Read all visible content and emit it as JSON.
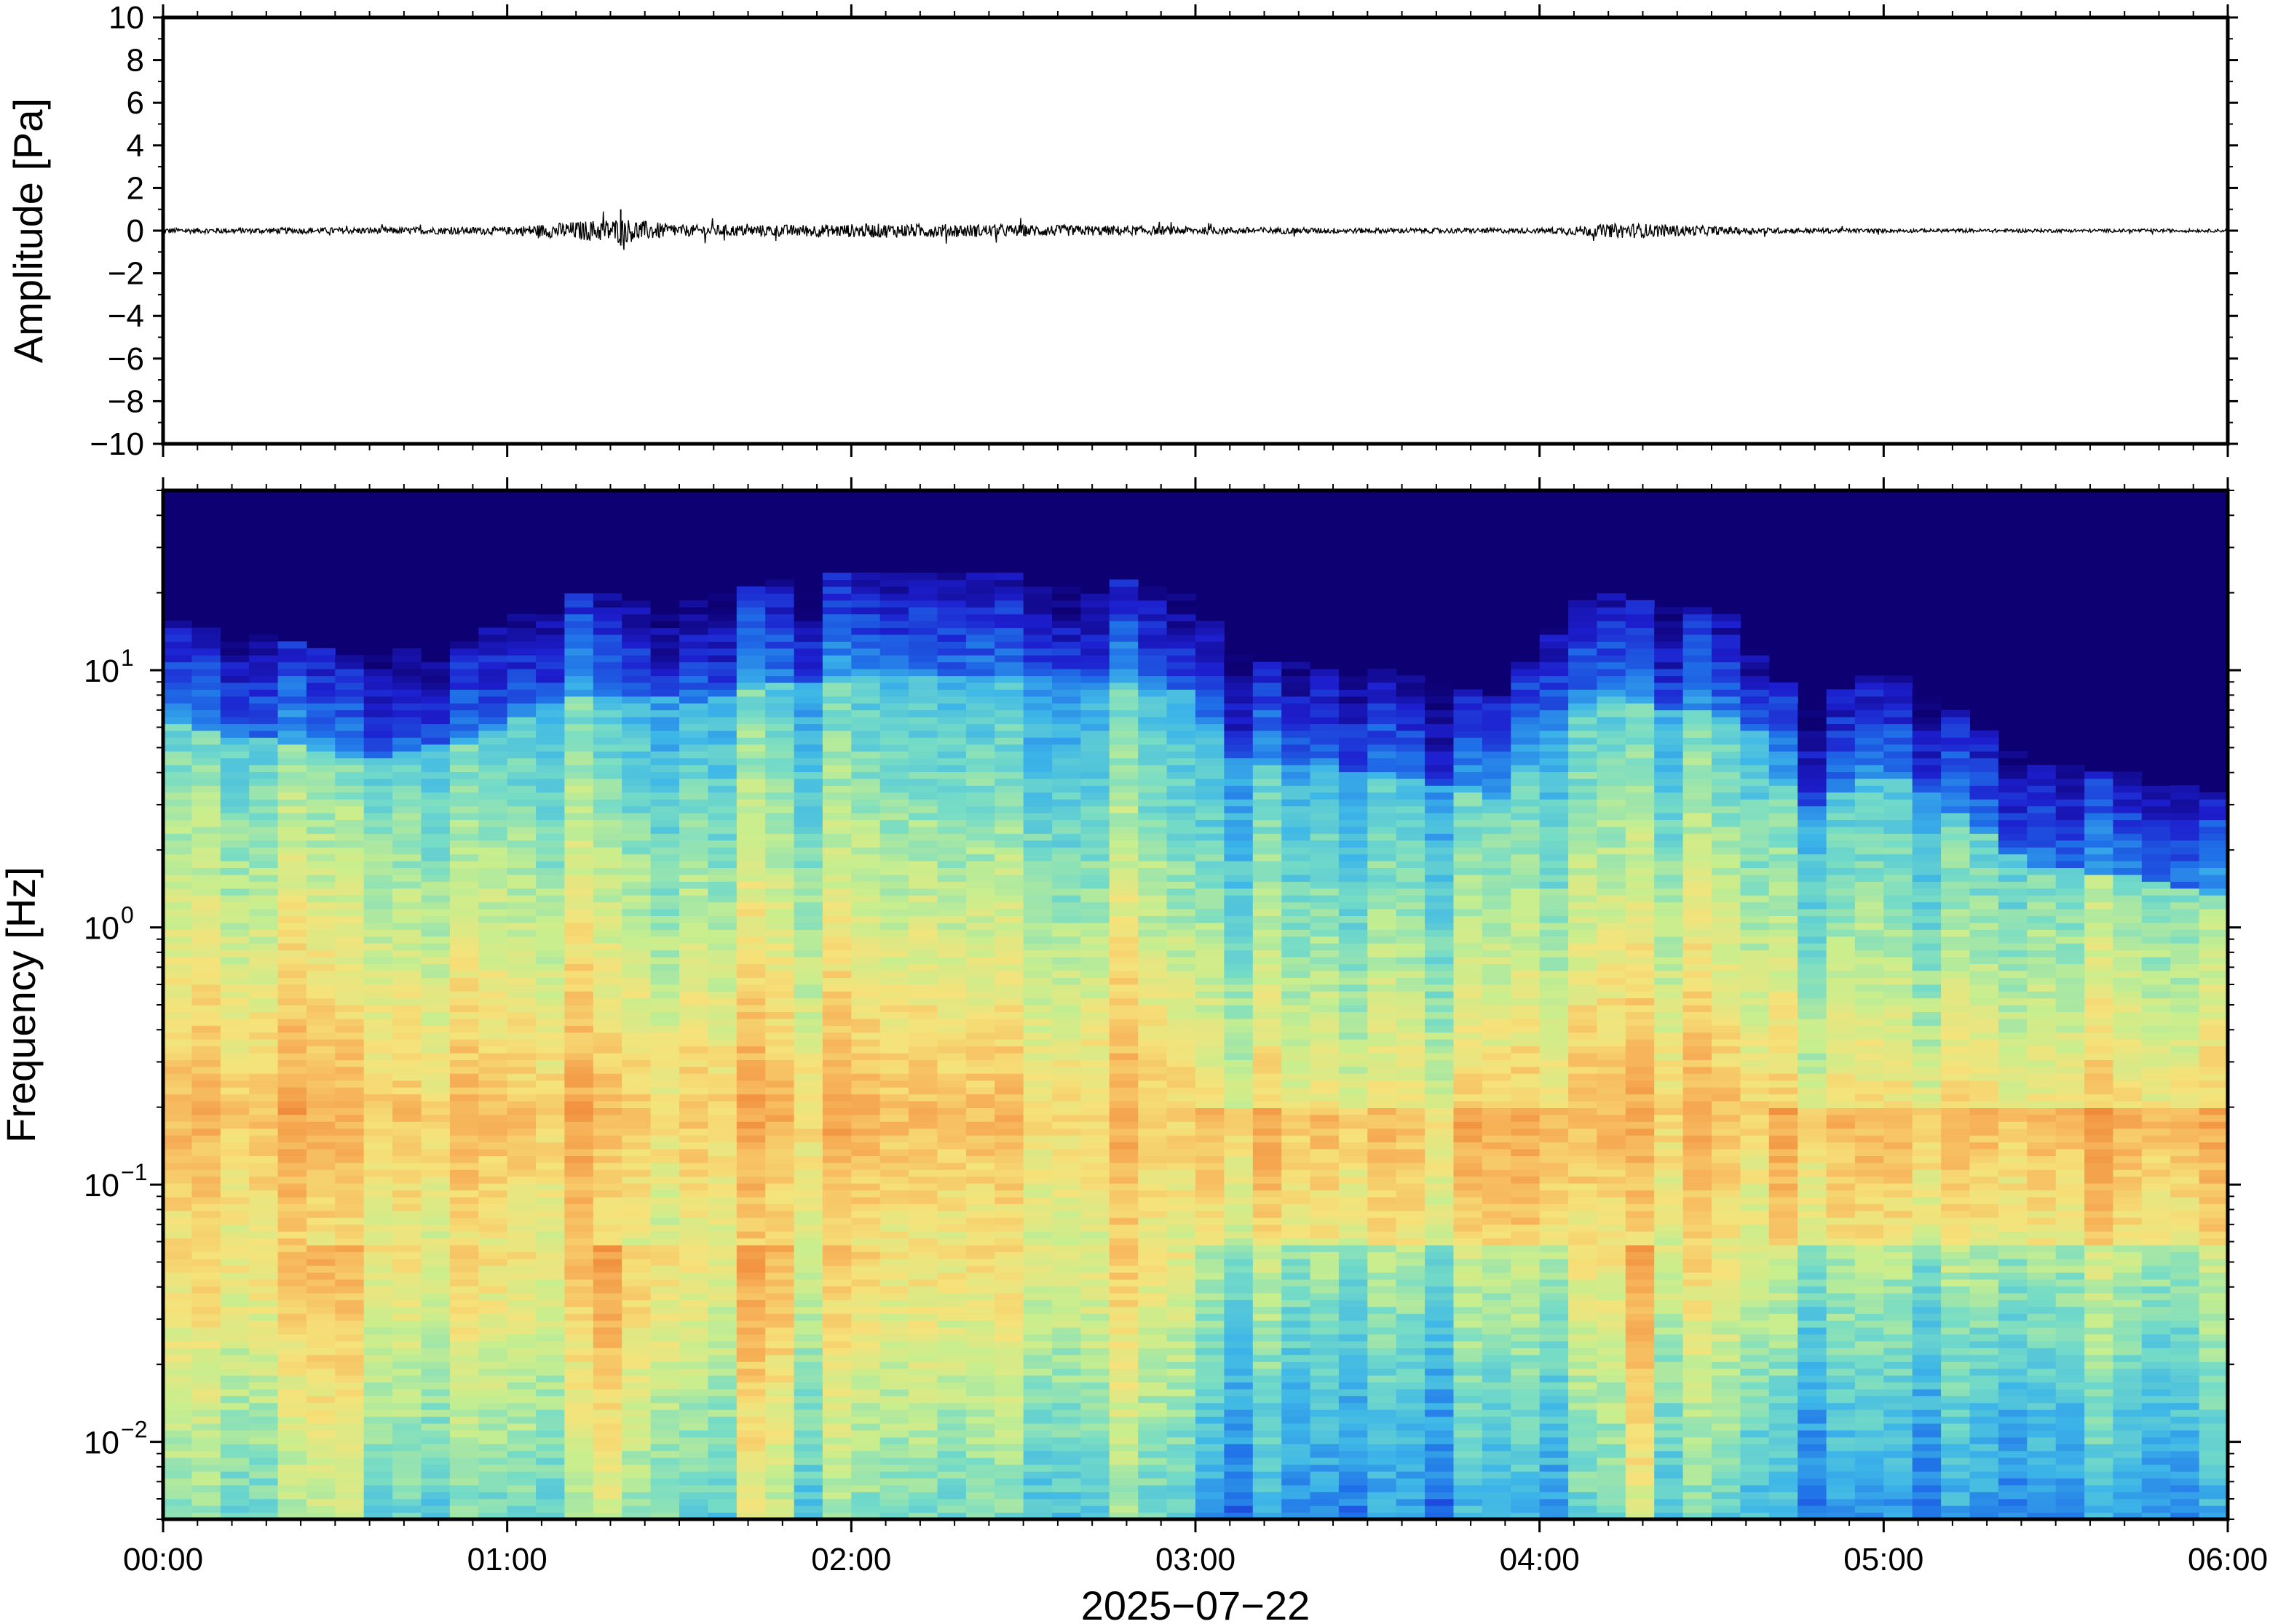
{
  "chart_data": [
    {
      "type": "line",
      "panel": "waveform",
      "ylabel": "Amplitude [Pa]",
      "ylim": [
        -10,
        10
      ],
      "yticks": [
        10,
        8,
        6,
        4,
        2,
        0,
        -2,
        -4,
        -6,
        -8,
        -10
      ],
      "ytick_labels": [
        "10",
        "8",
        "6",
        "4",
        "2",
        "0",
        "−2",
        "−4",
        "−6",
        "−8",
        "−10"
      ],
      "xlim_hours": [
        0,
        6
      ],
      "series": [
        {
          "color": "#000000",
          "baseline": 0,
          "envelope": [
            {
              "t_hours": 0.0,
              "amp": 0.2
            },
            {
              "t_hours": 0.5,
              "amp": 0.25
            },
            {
              "t_hours": 1.0,
              "amp": 0.3
            },
            {
              "t_hours": 1.33,
              "amp": 1.0
            },
            {
              "t_hours": 1.5,
              "amp": 0.45
            },
            {
              "t_hours": 1.75,
              "amp": 0.45
            },
            {
              "t_hours": 2.1,
              "amp": 0.55
            },
            {
              "t_hours": 2.4,
              "amp": 0.5
            },
            {
              "t_hours": 3.0,
              "amp": 0.3
            },
            {
              "t_hours": 3.5,
              "amp": 0.2
            },
            {
              "t_hours": 4.0,
              "amp": 0.2
            },
            {
              "t_hours": 4.25,
              "amp": 0.6
            },
            {
              "t_hours": 4.6,
              "amp": 0.25
            },
            {
              "t_hours": 5.0,
              "amp": 0.15
            },
            {
              "t_hours": 6.0,
              "amp": 0.12
            }
          ]
        }
      ]
    },
    {
      "type": "heatmap",
      "panel": "spectrogram",
      "ylabel": "Frequency [Hz]",
      "yscale": "log",
      "ylim": [
        0.005,
        50
      ],
      "yticks": [
        {
          "value": 10,
          "base": "10",
          "exp": "1"
        },
        {
          "value": 1,
          "base": "10",
          "exp": "0"
        },
        {
          "value": 0.1,
          "base": "10",
          "exp": "−1"
        },
        {
          "value": 0.01,
          "base": "10",
          "exp": "−2"
        }
      ],
      "xlabel": "2025−07−22",
      "xlim_hours": [
        0,
        6
      ],
      "xticks": [
        "00:00",
        "01:00",
        "02:00",
        "03:00",
        "04:00",
        "05:00",
        "06:00"
      ],
      "colormap": "jet",
      "colormap_stops": [
        "#0d0073",
        "#1d1fcf",
        "#1f6fe8",
        "#3db6e8",
        "#76dcc6",
        "#c8ee8e",
        "#f6e27a",
        "#f7b45a",
        "#f08a3a"
      ],
      "upper_limit_hz": [
        {
          "t_hours": 0.0,
          "f": 14
        },
        {
          "t_hours": 0.3,
          "f": 12
        },
        {
          "t_hours": 0.6,
          "f": 10
        },
        {
          "t_hours": 0.9,
          "f": 12
        },
        {
          "t_hours": 1.2,
          "f": 18
        },
        {
          "t_hours": 1.6,
          "f": 17
        },
        {
          "t_hours": 1.8,
          "f": 20
        },
        {
          "t_hours": 2.2,
          "f": 22
        },
        {
          "t_hours": 2.6,
          "f": 21
        },
        {
          "t_hours": 2.95,
          "f": 19
        },
        {
          "t_hours": 3.1,
          "f": 10
        },
        {
          "t_hours": 3.5,
          "f": 9
        },
        {
          "t_hours": 3.9,
          "f": 7
        },
        {
          "t_hours": 4.15,
          "f": 18
        },
        {
          "t_hours": 4.6,
          "f": 14
        },
        {
          "t_hours": 4.75,
          "f": 6
        },
        {
          "t_hours": 5.0,
          "f": 9
        },
        {
          "t_hours": 5.4,
          "f": 4
        },
        {
          "t_hours": 6.0,
          "f": 3
        }
      ],
      "peak_band_hz": [
        0.13,
        0.3
      ],
      "strong_events_hours": [
        0.5,
        1.3,
        1.42,
        1.75,
        4.3
      ]
    }
  ]
}
